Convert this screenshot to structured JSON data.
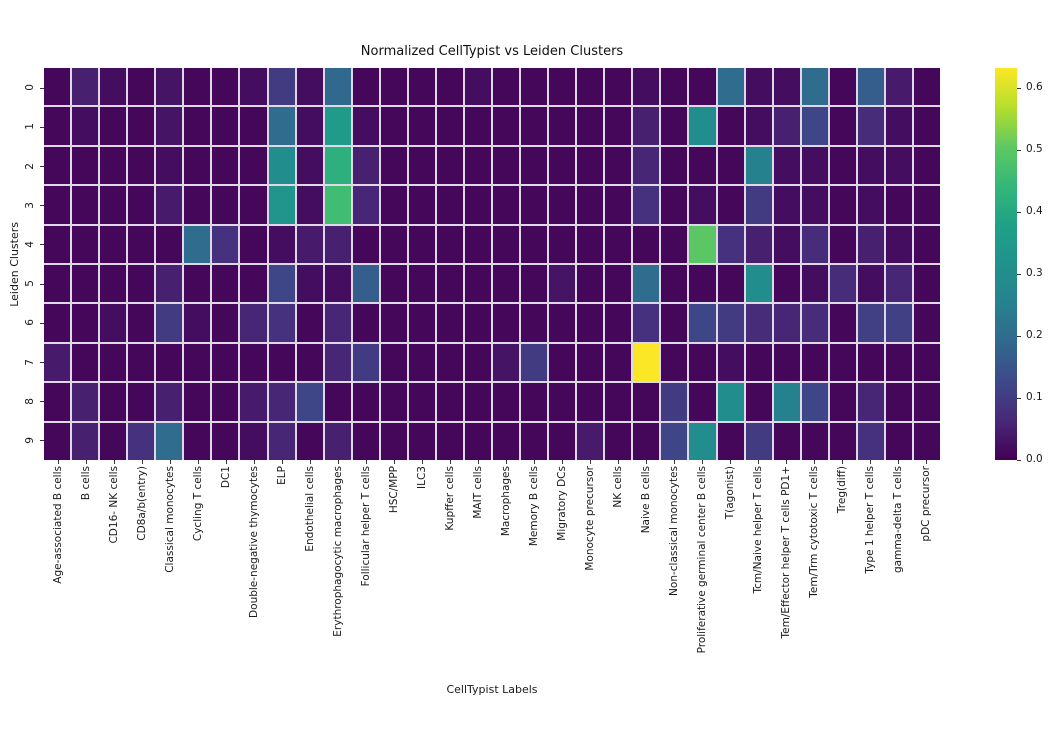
{
  "chart_data": {
    "type": "heatmap",
    "title": "Normalized CellTypist vs Leiden Clusters",
    "xlabel": "CellTypist Labels",
    "ylabel": "Leiden Clusters",
    "legend_position": "right-colorbar",
    "grid": true,
    "colormap": {
      "name": "viridis",
      "min_color": "#440154",
      "max_color": "#fde725"
    },
    "vmin": 0.0,
    "vmax": 0.632,
    "colorbar_ticks": [
      0.0,
      0.1,
      0.2,
      0.3,
      0.4,
      0.5,
      0.6
    ],
    "rows": [
      "0",
      "1",
      "2",
      "3",
      "4",
      "5",
      "6",
      "7",
      "8",
      "9"
    ],
    "columns": [
      "Age-associated B cells",
      "B cells",
      "CD16- NK cells",
      "CD8a/b(entry)",
      "Classical monocytes",
      "Cycling T cells",
      "DC1",
      "Double-negative thymocytes",
      "ELP",
      "Endothelial cells",
      "Erythrophagocytic macrophages",
      "Follicular helper T cells",
      "HSC/MPP",
      "ILC3",
      "Kupffer cells",
      "MAIT cells",
      "Macrophages",
      "Memory B cells",
      "Migratory DCs",
      "Monocyte precursor",
      "NK cells",
      "Naive B cells",
      "Non-classical monocytes",
      "Proliferative germinal center B cells",
      "T(agonist)",
      "Tcm/Naive helper T cells",
      "Tem/Effector helper T cells PD1+",
      "Tem/Trm cytotoxic T cells",
      "Treg(diff)",
      "Type 1 helper T cells",
      "gamma-delta T cells",
      "pDC precursor"
    ],
    "values": [
      [
        0.01,
        0.05,
        0.02,
        0.01,
        0.03,
        0.01,
        0.01,
        0.02,
        0.1,
        0.02,
        0.19,
        0.01,
        0.01,
        0.01,
        0.01,
        0.02,
        0.01,
        0.01,
        0.01,
        0.01,
        0.01,
        0.02,
        0.01,
        0.01,
        0.2,
        0.02,
        0.02,
        0.2,
        0.01,
        0.17,
        0.04,
        0.01
      ],
      [
        0.01,
        0.02,
        0.01,
        0.01,
        0.03,
        0.01,
        0.01,
        0.01,
        0.2,
        0.02,
        0.35,
        0.02,
        0.01,
        0.01,
        0.01,
        0.01,
        0.01,
        0.01,
        0.01,
        0.01,
        0.01,
        0.05,
        0.01,
        0.3,
        0.01,
        0.02,
        0.05,
        0.12,
        0.01,
        0.07,
        0.02,
        0.01
      ],
      [
        0.01,
        0.01,
        0.01,
        0.01,
        0.02,
        0.01,
        0.01,
        0.01,
        0.3,
        0.02,
        0.42,
        0.05,
        0.01,
        0.01,
        0.01,
        0.01,
        0.01,
        0.01,
        0.01,
        0.01,
        0.01,
        0.06,
        0.01,
        0.01,
        0.01,
        0.25,
        0.02,
        0.02,
        0.01,
        0.02,
        0.02,
        0.01
      ],
      [
        0.01,
        0.01,
        0.01,
        0.01,
        0.04,
        0.01,
        0.01,
        0.01,
        0.33,
        0.02,
        0.46,
        0.06,
        0.01,
        0.01,
        0.01,
        0.01,
        0.01,
        0.01,
        0.01,
        0.01,
        0.01,
        0.08,
        0.01,
        0.02,
        0.01,
        0.1,
        0.02,
        0.02,
        0.01,
        0.02,
        0.01,
        0.01
      ],
      [
        0.01,
        0.01,
        0.01,
        0.01,
        0.01,
        0.2,
        0.08,
        0.01,
        0.02,
        0.04,
        0.05,
        0.01,
        0.01,
        0.01,
        0.01,
        0.01,
        0.01,
        0.01,
        0.01,
        0.01,
        0.01,
        0.01,
        0.01,
        0.5,
        0.08,
        0.05,
        0.02,
        0.07,
        0.01,
        0.05,
        0.02,
        0.01
      ],
      [
        0.01,
        0.01,
        0.01,
        0.01,
        0.05,
        0.01,
        0.01,
        0.01,
        0.12,
        0.02,
        0.02,
        0.17,
        0.01,
        0.01,
        0.01,
        0.01,
        0.01,
        0.01,
        0.03,
        0.01,
        0.01,
        0.2,
        0.01,
        0.01,
        0.01,
        0.3,
        0.01,
        0.02,
        0.07,
        0.02,
        0.06,
        0.01
      ],
      [
        0.01,
        0.01,
        0.02,
        0.01,
        0.1,
        0.02,
        0.01,
        0.06,
        0.08,
        0.01,
        0.06,
        0.01,
        0.01,
        0.01,
        0.01,
        0.01,
        0.01,
        0.01,
        0.01,
        0.01,
        0.01,
        0.08,
        0.01,
        0.12,
        0.1,
        0.07,
        0.06,
        0.07,
        0.01,
        0.11,
        0.11,
        0.01
      ],
      [
        0.04,
        0.01,
        0.01,
        0.01,
        0.01,
        0.01,
        0.01,
        0.01,
        0.01,
        0.01,
        0.06,
        0.1,
        0.01,
        0.01,
        0.01,
        0.01,
        0.03,
        0.1,
        0.01,
        0.01,
        0.01,
        0.63,
        0.01,
        0.01,
        0.02,
        0.01,
        0.01,
        0.01,
        0.01,
        0.01,
        0.01,
        0.01
      ],
      [
        0.01,
        0.05,
        0.01,
        0.01,
        0.05,
        0.01,
        0.01,
        0.04,
        0.06,
        0.12,
        0.01,
        0.01,
        0.01,
        0.01,
        0.01,
        0.01,
        0.01,
        0.01,
        0.01,
        0.01,
        0.01,
        0.01,
        0.1,
        0.01,
        0.3,
        0.01,
        0.25,
        0.12,
        0.01,
        0.06,
        0.01,
        0.01
      ],
      [
        0.01,
        0.05,
        0.01,
        0.08,
        0.2,
        0.01,
        0.01,
        0.02,
        0.06,
        0.01,
        0.05,
        0.01,
        0.01,
        0.01,
        0.01,
        0.01,
        0.01,
        0.01,
        0.01,
        0.04,
        0.01,
        0.01,
        0.12,
        0.3,
        0.01,
        0.1,
        0.01,
        0.01,
        0.01,
        0.08,
        0.01,
        0.01
      ]
    ]
  }
}
